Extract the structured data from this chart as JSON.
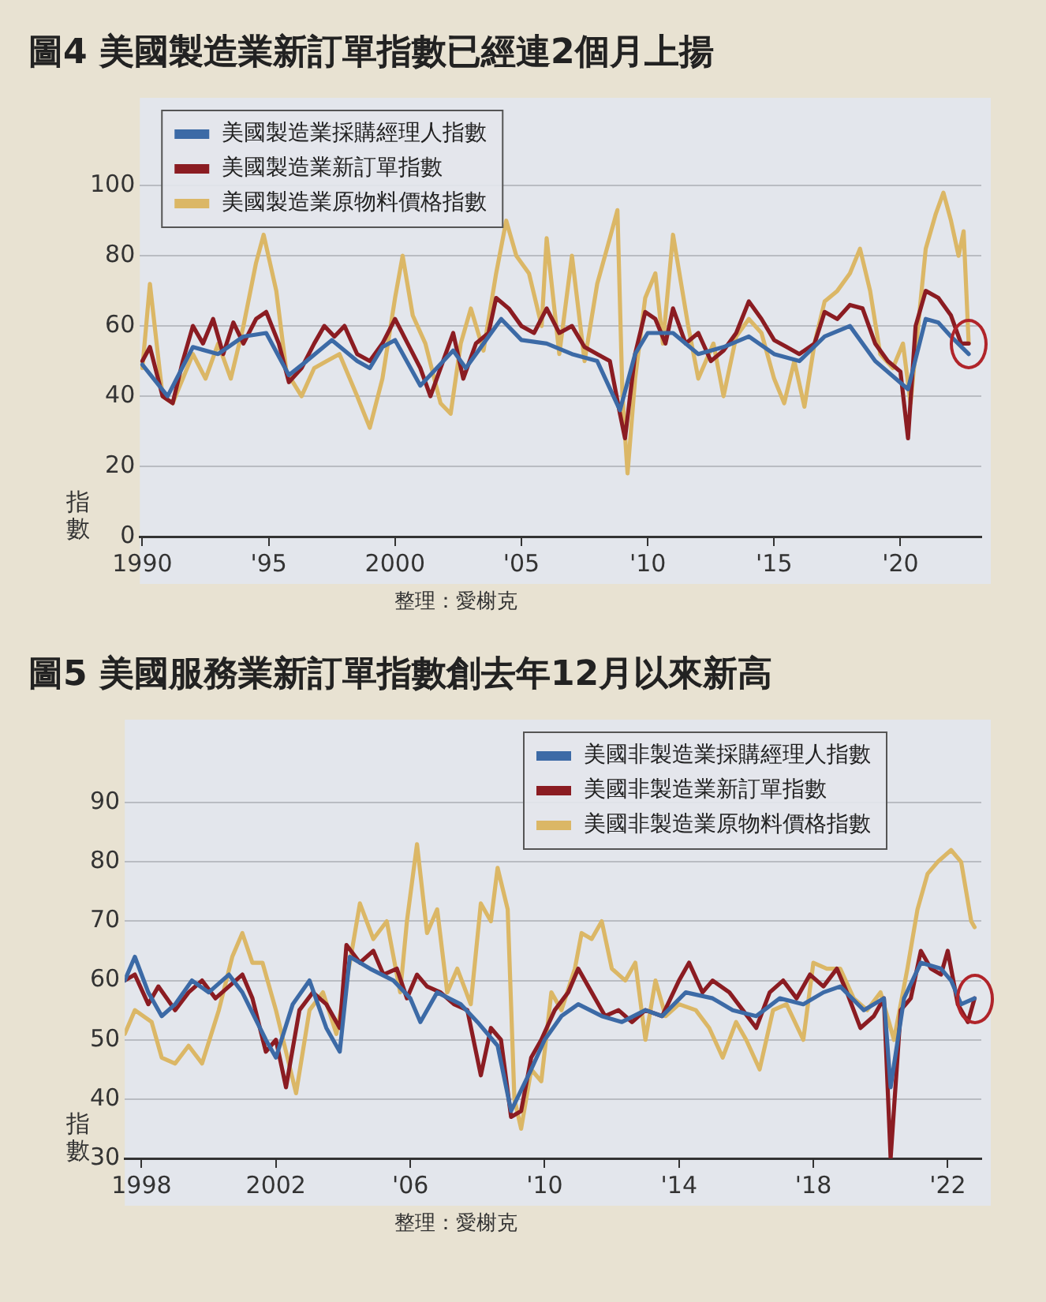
{
  "chart_data": [
    {
      "type": "line",
      "title": "圖4 美國製造業新訂單指數已經連2個月上揚",
      "ylabel": "指數",
      "annotations": [
        "整理：愛榭克"
      ],
      "xlim": [
        1989.9,
        2023.2
      ],
      "ylim": [
        0,
        125
      ],
      "xticks": [
        {
          "value": 1990,
          "label": "1990"
        },
        {
          "value": 1995,
          "label": "'95"
        },
        {
          "value": 2000,
          "label": "2000"
        },
        {
          "value": 2005,
          "label": "'05"
        },
        {
          "value": 2010,
          "label": "'10"
        },
        {
          "value": 2015,
          "label": "'15"
        },
        {
          "value": 2020,
          "label": "'20"
        }
      ],
      "yticks": [
        0,
        20,
        40,
        60,
        80,
        100
      ],
      "grid": "y",
      "legend": "top left",
      "marker": "none",
      "line_style": "solid",
      "series": [
        {
          "name": "美國製造業採購經理人指數",
          "color": "#3c6aa6",
          "x": [
            1990,
            1991,
            1992,
            1993,
            1994,
            1994.9,
            1995.8,
            1996.5,
            1997.5,
            1998.5,
            1999,
            1999.5,
            2000,
            2001,
            2002.3,
            2002.8,
            2003.5,
            2004.2,
            2005,
            2006,
            2007,
            2008,
            2008.9,
            2009.5,
            2010,
            2011,
            2012,
            2013,
            2014,
            2015,
            2016,
            2017,
            2018,
            2019,
            2020.3,
            2021,
            2021.5,
            2022,
            2022.7
          ],
          "values": [
            49,
            40,
            54,
            52,
            57,
            58,
            46,
            50,
            56,
            50,
            48,
            54,
            56,
            43,
            53,
            48,
            55,
            62,
            56,
            55,
            52,
            50,
            36,
            52,
            58,
            58,
            52,
            54,
            57,
            52,
            50,
            57,
            60,
            50,
            42,
            62,
            61,
            57,
            52
          ]
        },
        {
          "name": "美國製造業新訂單指數",
          "color": "#8b1c22",
          "x": [
            1990,
            1990.3,
            1990.8,
            1991.2,
            1991.6,
            1992,
            1992.4,
            1992.8,
            1993.2,
            1993.6,
            1994,
            1994.5,
            1994.9,
            1995.4,
            1995.8,
            1996.3,
            1996.8,
            1997.2,
            1997.6,
            1998,
            1998.5,
            1999,
            1999.5,
            2000,
            2000.5,
            2001,
            2001.4,
            2001.8,
            2002.3,
            2002.7,
            2003.2,
            2003.7,
            2004,
            2004.5,
            2005,
            2005.5,
            2006,
            2006.5,
            2007,
            2007.5,
            2008,
            2008.5,
            2008.9,
            2009.1,
            2009.5,
            2009.9,
            2010.3,
            2010.7,
            2011,
            2011.5,
            2012,
            2012.5,
            2013,
            2013.5,
            2014,
            2014.5,
            2015,
            2015.5,
            2016,
            2016.6,
            2017,
            2017.5,
            2018,
            2018.5,
            2019,
            2019.5,
            2020,
            2020.3,
            2020.6,
            2021,
            2021.5,
            2022,
            2022.4,
            2022.7
          ],
          "values": [
            50,
            54,
            40,
            38,
            50,
            60,
            55,
            62,
            52,
            61,
            55,
            62,
            64,
            55,
            44,
            48,
            55,
            60,
            57,
            60,
            52,
            50,
            55,
            62,
            55,
            48,
            40,
            48,
            58,
            45,
            55,
            58,
            68,
            65,
            60,
            58,
            65,
            58,
            60,
            54,
            52,
            50,
            35,
            28,
            52,
            64,
            62,
            55,
            65,
            55,
            58,
            50,
            53,
            58,
            67,
            62,
            56,
            54,
            52,
            55,
            64,
            62,
            66,
            65,
            55,
            50,
            47,
            28,
            60,
            70,
            68,
            63,
            55,
            55
          ]
        },
        {
          "name": "美國製造業原物料價格指數",
          "color": "#dbb766",
          "x": [
            1990,
            1990.3,
            1990.8,
            1991.2,
            1992,
            1992.5,
            1993,
            1993.5,
            1994,
            1994.5,
            1994.8,
            1995.3,
            1995.7,
            1996.3,
            1996.8,
            1997.3,
            1997.8,
            1998.5,
            1999,
            1999.5,
            2000,
            2000.3,
            2000.7,
            2001.2,
            2001.8,
            2002.2,
            2002.6,
            2003,
            2003.5,
            2004,
            2004.4,
            2004.8,
            2005.3,
            2005.8,
            2006,
            2006.5,
            2007,
            2007.5,
            2008,
            2008.5,
            2008.8,
            2009,
            2009.2,
            2009.5,
            2009.9,
            2010.3,
            2010.6,
            2011,
            2011.6,
            2012,
            2012.6,
            2013,
            2013.5,
            2014,
            2014.5,
            2015,
            2015.4,
            2015.8,
            2016.2,
            2016.6,
            2017,
            2017.5,
            2018,
            2018.4,
            2018.8,
            2019.2,
            2019.7,
            2020.1,
            2020.4,
            2020.7,
            2021,
            2021.4,
            2021.7,
            2022,
            2022.3,
            2022.5,
            2022.7
          ],
          "values": [
            48,
            72,
            40,
            38,
            52,
            45,
            55,
            45,
            60,
            78,
            86,
            70,
            47,
            40,
            48,
            50,
            52,
            40,
            31,
            45,
            68,
            80,
            63,
            55,
            38,
            35,
            55,
            65,
            53,
            75,
            90,
            80,
            75,
            60,
            85,
            52,
            80,
            50,
            72,
            85,
            93,
            40,
            18,
            45,
            68,
            75,
            55,
            86,
            60,
            45,
            55,
            40,
            57,
            62,
            58,
            45,
            38,
            50,
            37,
            55,
            67,
            70,
            75,
            82,
            70,
            52,
            48,
            55,
            38,
            60,
            82,
            92,
            98,
            90,
            80,
            87,
            55
          ]
        }
      ]
    },
    {
      "type": "line",
      "title": "圖5 美國服務業新訂單指數創去年12月以來新高",
      "ylabel": "指數",
      "annotations": [
        "整理：愛榭克"
      ],
      "xlim": [
        1997.5,
        2023
      ],
      "ylim": [
        30,
        104
      ],
      "xticks": [
        {
          "value": 1998,
          "label": "1998"
        },
        {
          "value": 2002,
          "label": "2002"
        },
        {
          "value": 2006,
          "label": "'06"
        },
        {
          "value": 2010,
          "label": "'10"
        },
        {
          "value": 2014,
          "label": "'14"
        },
        {
          "value": 2018,
          "label": "'18"
        },
        {
          "value": 2022,
          "label": "'22"
        }
      ],
      "yticks": [
        30,
        40,
        50,
        60,
        70,
        80,
        90
      ],
      "grid": "y",
      "legend": "top right",
      "marker": "none",
      "line_style": "solid",
      "series": [
        {
          "name": "美國非製造業採購經理人指數",
          "color": "#3c6aa6",
          "x": [
            1997.5,
            1997.8,
            1998.2,
            1998.6,
            1999,
            1999.5,
            2000,
            2000.6,
            2001,
            2001.7,
            2002,
            2002.5,
            2003,
            2003.5,
            2003.9,
            2004.2,
            2004.8,
            2005.5,
            2006,
            2006.3,
            2006.8,
            2007.5,
            2008,
            2008.6,
            2009,
            2009.6,
            2010,
            2010.5,
            2011,
            2011.7,
            2012.3,
            2013,
            2013.5,
            2014.2,
            2015,
            2015.6,
            2016.3,
            2017,
            2017.7,
            2018.3,
            2018.8,
            2019.5,
            2020.1,
            2020.3,
            2020.7,
            2021.2,
            2021.8,
            2022.1,
            2022.4,
            2022.8
          ],
          "values": [
            60,
            64,
            58,
            54,
            56,
            60,
            58,
            61,
            58,
            50,
            47,
            56,
            60,
            52,
            48,
            64,
            62,
            60,
            57,
            53,
            58,
            56,
            53,
            49,
            38,
            45,
            50,
            54,
            56,
            54,
            53,
            55,
            54,
            58,
            57,
            55,
            54,
            57,
            56,
            58,
            59,
            55,
            57,
            42,
            57,
            63,
            62,
            60,
            56,
            57
          ]
        },
        {
          "name": "美國非製造業新訂單指數",
          "color": "#8b1c22",
          "x": [
            1997.5,
            1997.8,
            1998.2,
            1998.5,
            1999,
            1999.4,
            1999.8,
            2000.2,
            2000.6,
            2001,
            2001.3,
            2001.7,
            2002,
            2002.3,
            2002.7,
            2003.1,
            2003.5,
            2003.9,
            2004.1,
            2004.5,
            2004.9,
            2005.2,
            2005.6,
            2005.9,
            2006.2,
            2006.5,
            2006.9,
            2007.3,
            2007.7,
            2008.1,
            2008.4,
            2008.7,
            2009,
            2009.3,
            2009.6,
            2009.9,
            2010.3,
            2010.7,
            2011,
            2011.4,
            2011.8,
            2012.2,
            2012.6,
            2013,
            2013.5,
            2014,
            2014.3,
            2014.7,
            2015,
            2015.5,
            2015.9,
            2016.3,
            2016.7,
            2017.1,
            2017.5,
            2017.9,
            2018.3,
            2018.7,
            2019,
            2019.4,
            2019.8,
            2020.1,
            2020.3,
            2020.6,
            2020.9,
            2021.2,
            2021.5,
            2021.8,
            2022,
            2022.3,
            2022.6,
            2022.8
          ],
          "values": [
            60,
            61,
            56,
            59,
            55,
            58,
            60,
            57,
            59,
            61,
            57,
            48,
            50,
            42,
            55,
            58,
            56,
            52,
            66,
            63,
            65,
            61,
            62,
            57,
            61,
            59,
            58,
            56,
            55,
            44,
            52,
            50,
            37,
            38,
            47,
            50,
            55,
            58,
            62,
            58,
            54,
            55,
            53,
            55,
            54,
            60,
            63,
            58,
            60,
            58,
            55,
            52,
            58,
            60,
            57,
            61,
            59,
            62,
            58,
            52,
            54,
            57,
            30,
            55,
            57,
            65,
            62,
            61,
            65,
            56,
            53,
            57
          ]
        },
        {
          "name": "美國非製造業原物料價格指數",
          "color": "#dbb766",
          "x": [
            1997.5,
            1997.8,
            1998.3,
            1998.6,
            1999,
            1999.4,
            1999.8,
            2000.3,
            2000.7,
            2001,
            2001.3,
            2001.6,
            2002,
            2002.3,
            2002.6,
            2003,
            2003.4,
            2003.8,
            2004.2,
            2004.5,
            2004.9,
            2005.3,
            2005.7,
            2005.9,
            2006.2,
            2006.5,
            2006.8,
            2007.1,
            2007.4,
            2007.8,
            2008.1,
            2008.4,
            2008.6,
            2008.9,
            2009.1,
            2009.3,
            2009.6,
            2009.9,
            2010.2,
            2010.5,
            2010.9,
            2011.1,
            2011.4,
            2011.7,
            2012,
            2012.4,
            2012.7,
            2013,
            2013.3,
            2013.6,
            2014,
            2014.5,
            2014.9,
            2015.3,
            2015.7,
            2016,
            2016.4,
            2016.8,
            2017.2,
            2017.7,
            2018,
            2018.4,
            2018.8,
            2019.2,
            2019.6,
            2020,
            2020.4,
            2020.8,
            2021.1,
            2021.4,
            2021.7,
            2022.1,
            2022.4,
            2022.7,
            2022.8
          ],
          "values": [
            51,
            55,
            53,
            47,
            46,
            49,
            46,
            55,
            64,
            68,
            63,
            63,
            55,
            48,
            41,
            55,
            58,
            51,
            63,
            73,
            67,
            70,
            58,
            70,
            83,
            68,
            72,
            58,
            62,
            56,
            73,
            70,
            79,
            72,
            40,
            35,
            45,
            43,
            58,
            55,
            62,
            68,
            67,
            70,
            62,
            60,
            63,
            50,
            60,
            54,
            56,
            55,
            52,
            47,
            53,
            50,
            45,
            55,
            56,
            50,
            63,
            62,
            62,
            57,
            55,
            58,
            50,
            62,
            72,
            78,
            80,
            82,
            80,
            70,
            69
          ]
        }
      ]
    }
  ]
}
